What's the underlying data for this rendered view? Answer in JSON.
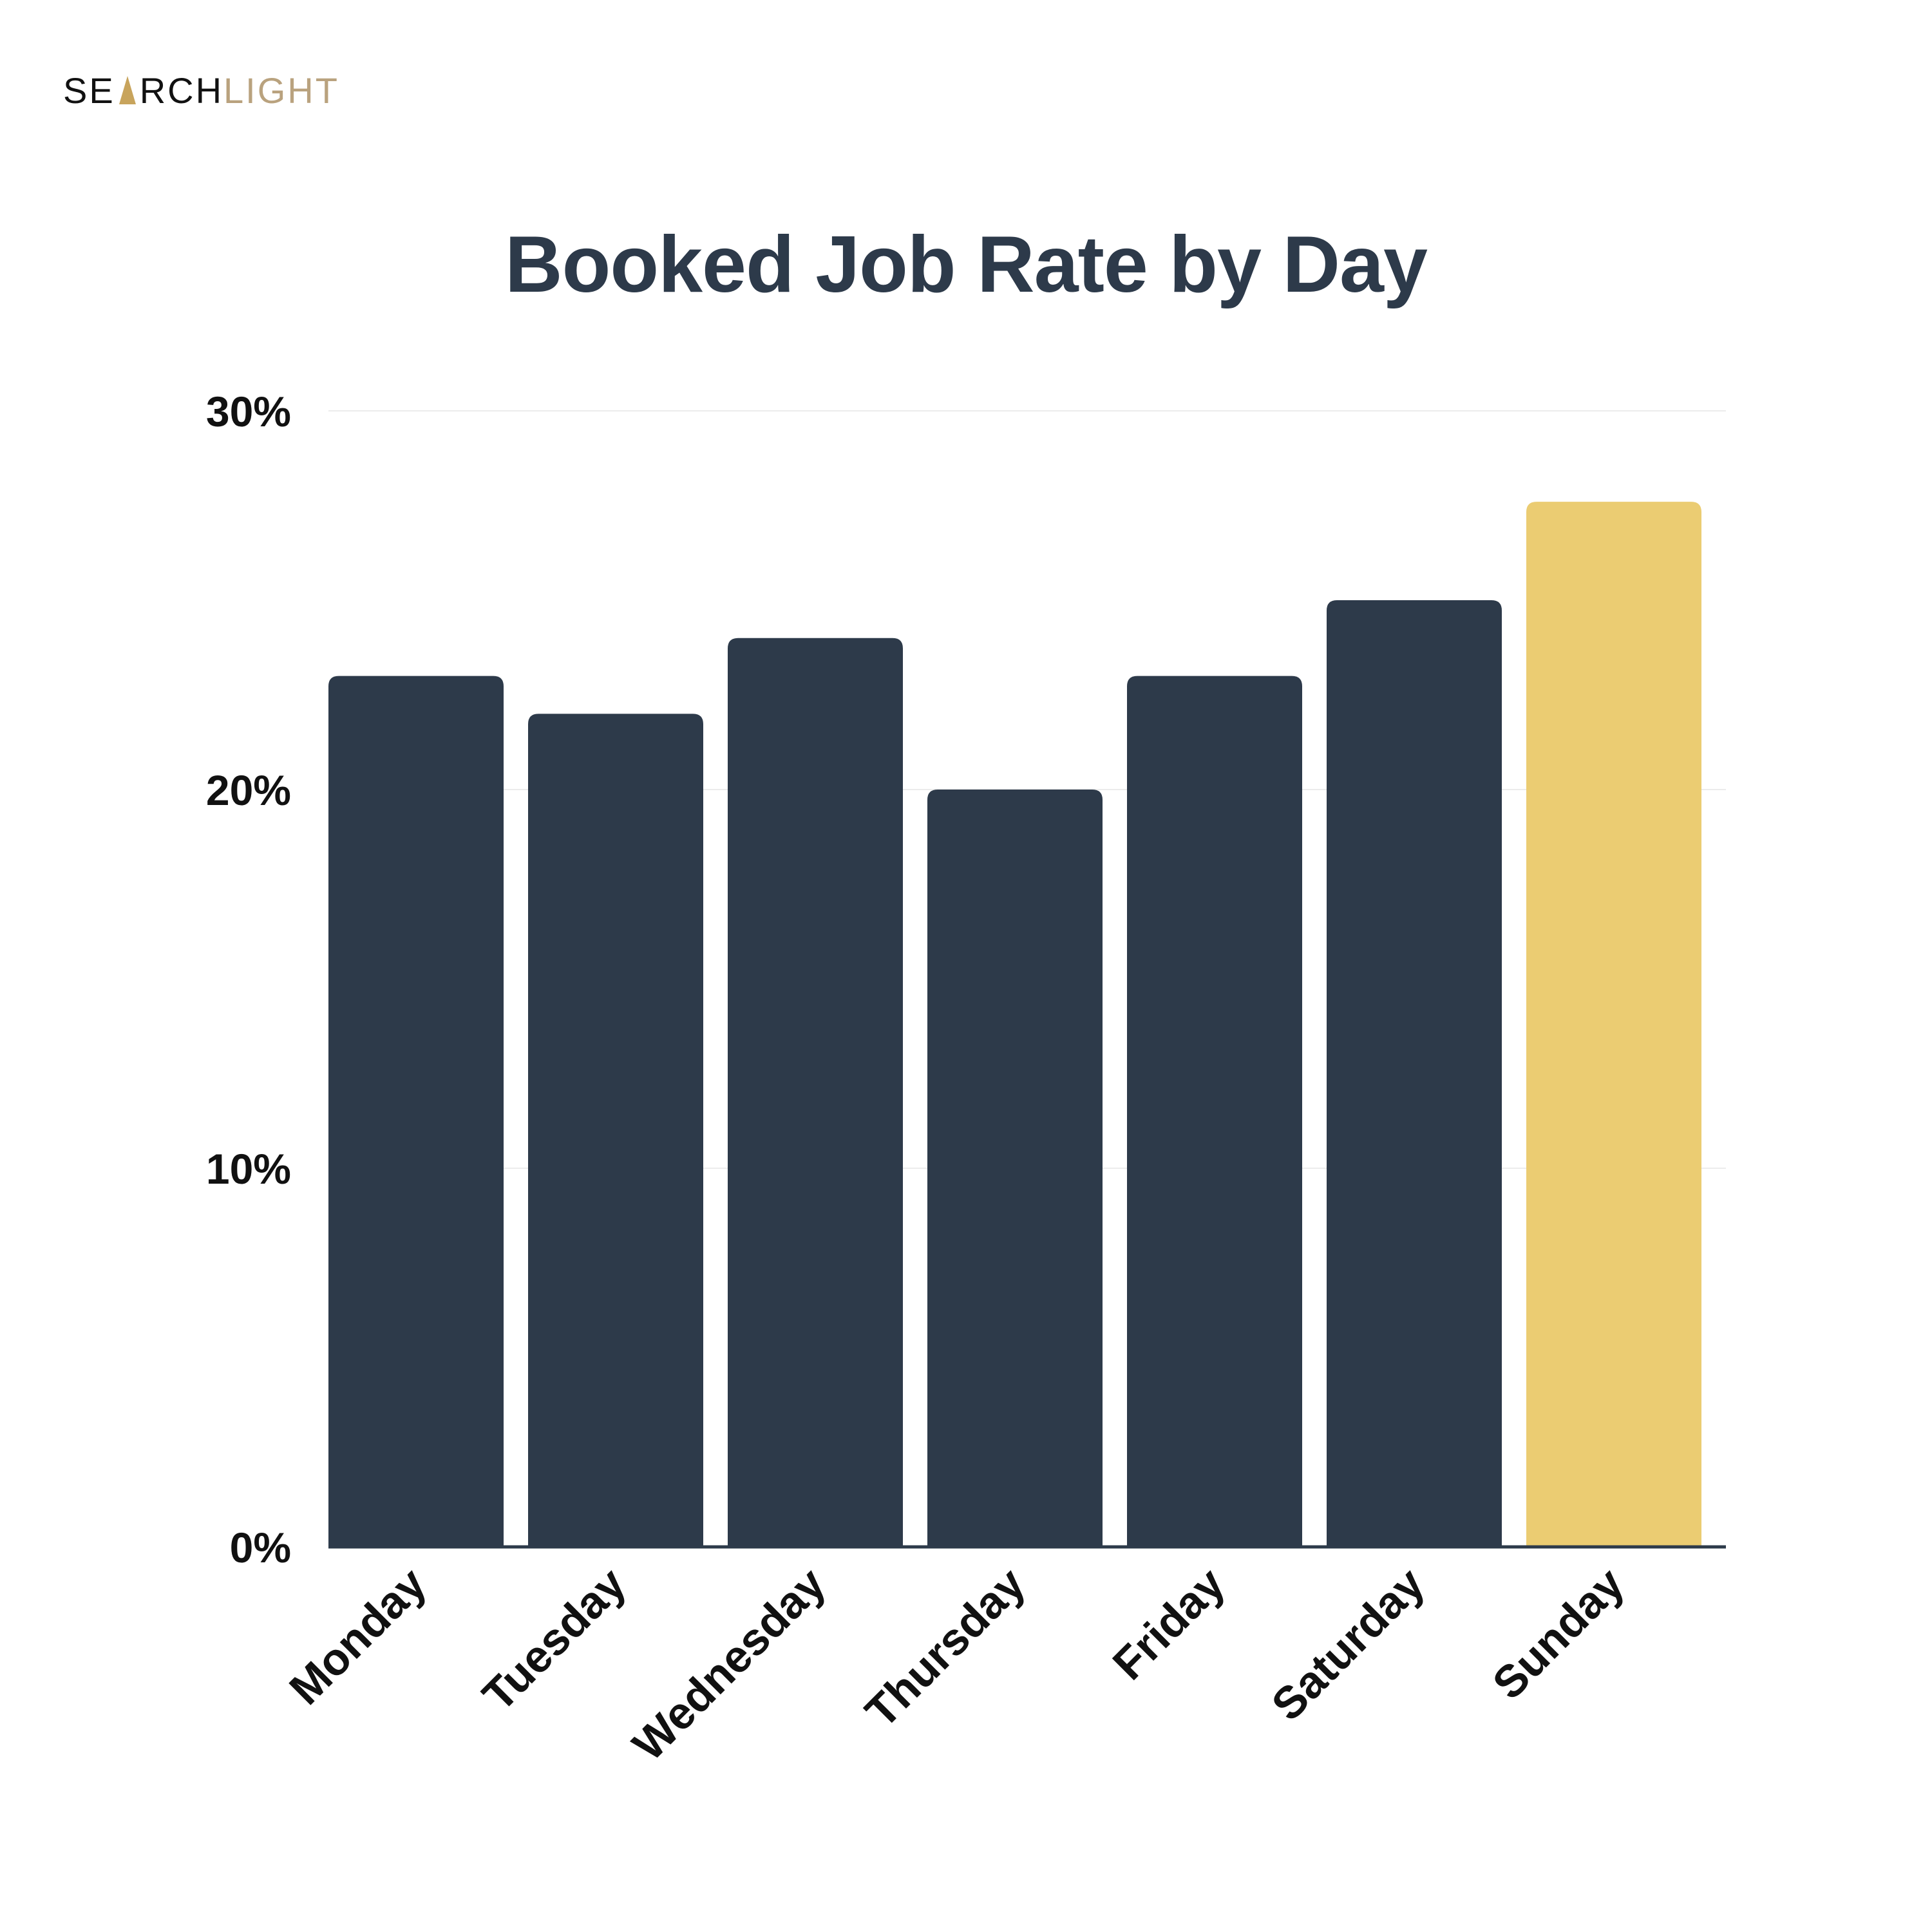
{
  "brand": {
    "logo_part1": "SE",
    "logo_part2": "RCH",
    "logo_part3": "LIGHT",
    "logo_dark_color": "#111111",
    "logo_light_color": "#b9a27e",
    "logo_spark_color": "#c8a45c"
  },
  "colors": {
    "bar_default": "#2d3a4a",
    "bar_highlight": "#ebcc72",
    "gridline": "#ececec",
    "baseline": "#2d3a4a",
    "title": "#2d3a4a"
  },
  "chart_data": {
    "type": "bar",
    "title": "Booked Job Rate by Day",
    "xlabel": "",
    "ylabel": "",
    "categories": [
      "Monday",
      "Tuesday",
      "Wednesday",
      "Thursday",
      "Friday",
      "Saturday",
      "Sunday"
    ],
    "values": [
      23,
      22,
      24,
      20,
      23,
      25,
      27.6
    ],
    "unit": "%",
    "highlight": "Sunday",
    "ylim": [
      0,
      30
    ],
    "yticks": [
      0,
      10,
      20,
      30
    ],
    "ytick_labels": [
      "0%",
      "10%",
      "20%",
      "30%"
    ],
    "grid": true,
    "legend": "none"
  }
}
